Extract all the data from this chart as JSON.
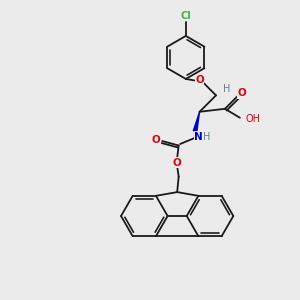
{
  "background_color": "#ebebeb",
  "bond_color": "#1a1a1a",
  "oxygen_color": "#e8000d",
  "nitrogen_color": "#0000cd",
  "chlorine_color": "#3cb44b",
  "hydrogen_color": "#5f8090",
  "figsize": [
    3.0,
    3.0
  ],
  "dpi": 100,
  "xlim": [
    0,
    10
  ],
  "ylim": [
    0,
    10
  ]
}
